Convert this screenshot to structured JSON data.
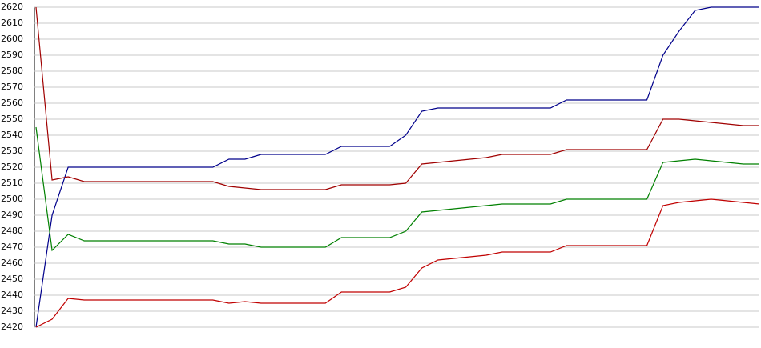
{
  "chart_data": {
    "type": "line",
    "categories": [
      null,
      null,
      null,
      null,
      null,
      null,
      null,
      null,
      null,
      null,
      null,
      null,
      null,
      null,
      null,
      null,
      null,
      null,
      null,
      null,
      null,
      null,
      null,
      null,
      null,
      null,
      null,
      null,
      null,
      null,
      null,
      null,
      null,
      null,
      null,
      null,
      null,
      null,
      null,
      null,
      null,
      null,
      null,
      null,
      null,
      null
    ],
    "series": [
      {
        "color": "#00008b",
        "values": [
          2420,
          2490,
          2520,
          2520,
          2520,
          2520,
          2520,
          2520,
          2520,
          2520,
          2520,
          2520,
          2525,
          2525,
          2528,
          2528,
          2528,
          2528,
          2528,
          2533,
          2533,
          2533,
          2533,
          2540,
          2555,
          2557,
          2557,
          2557,
          2557,
          2557,
          2557,
          2557,
          2557,
          2562,
          2562,
          2562,
          2562,
          2562,
          2562,
          2590,
          2605,
          2618,
          2620,
          2620,
          2620,
          2620
        ]
      },
      {
        "color": "#a00000",
        "values": [
          2620,
          2512,
          2514,
          2511,
          2511,
          2511,
          2511,
          2511,
          2511,
          2511,
          2511,
          2511,
          2508,
          2507,
          2506,
          2506,
          2506,
          2506,
          2506,
          2509,
          2509,
          2509,
          2509,
          2510,
          2522,
          2523,
          2524,
          2525,
          2526,
          2528,
          2528,
          2528,
          2528,
          2531,
          2531,
          2531,
          2531,
          2531,
          2531,
          2550,
          2550,
          2549,
          2548,
          2547,
          2546,
          2546
        ]
      },
      {
        "color": "#008000",
        "values": [
          2545,
          2468,
          2478,
          2474,
          2474,
          2474,
          2474,
          2474,
          2474,
          2474,
          2474,
          2474,
          2472,
          2472,
          2470,
          2470,
          2470,
          2470,
          2470,
          2476,
          2476,
          2476,
          2476,
          2480,
          2492,
          2493,
          2494,
          2495,
          2496,
          2497,
          2497,
          2497,
          2497,
          2500,
          2500,
          2500,
          2500,
          2500,
          2500,
          2523,
          2524,
          2525,
          2524,
          2523,
          2522,
          2522
        ]
      },
      {
        "color": "#c00000",
        "values": [
          2420,
          2425,
          2438,
          2437,
          2437,
          2437,
          2437,
          2437,
          2437,
          2437,
          2437,
          2437,
          2435,
          2436,
          2435,
          2435,
          2435,
          2435,
          2435,
          2442,
          2442,
          2442,
          2442,
          2445,
          2457,
          2462,
          2463,
          2464,
          2465,
          2467,
          2467,
          2467,
          2467,
          2471,
          2471,
          2471,
          2471,
          2471,
          2471,
          2496,
          2498,
          2499,
          2500,
          2499,
          2498,
          2497
        ]
      }
    ],
    "ylim": [
      2420,
      2620
    ],
    "yticks": [
      2420,
      2430,
      2440,
      2450,
      2460,
      2470,
      2480,
      2490,
      2500,
      2510,
      2520,
      2530,
      2540,
      2550,
      2560,
      2570,
      2580,
      2590,
      2600,
      2610,
      2620
    ],
    "grid": true
  }
}
